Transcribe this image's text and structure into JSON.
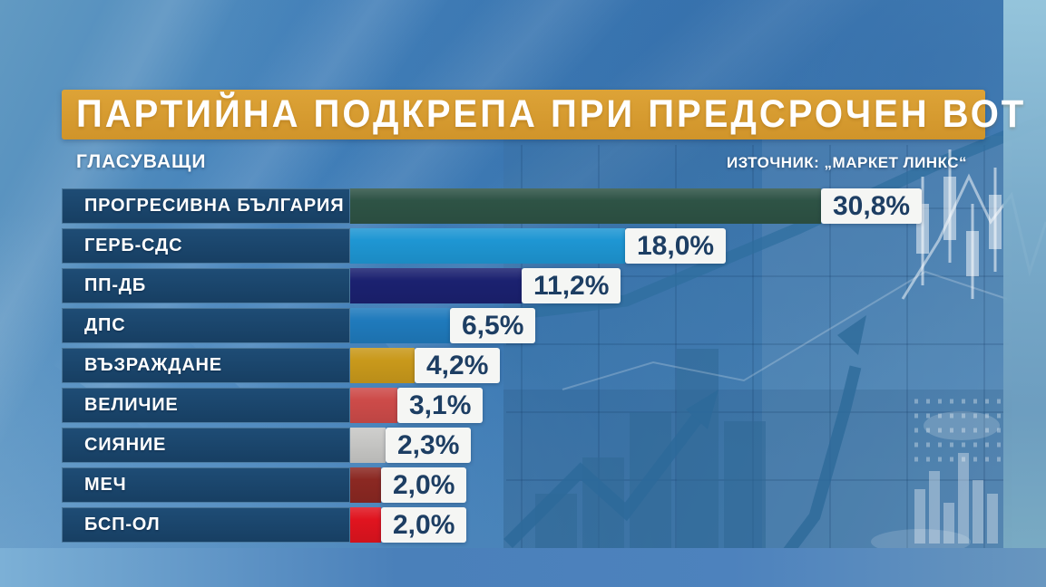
{
  "header": {
    "banner_color": "#d6992c"
  },
  "chart_data": {
    "type": "bar",
    "orientation": "horizontal",
    "title": "ПАРТИЙНА ПОДКРЕПА ПРИ ПРЕДСРОЧЕН ВОТ",
    "group_label": "ГЛАСУВАЩИ",
    "source": "ИЗТОЧНИК: „МАРКЕТ ЛИНКС“",
    "unit": "%",
    "xlim": [
      0,
      31
    ],
    "categories": [
      "ПРОГРЕСИВНА БЪЛГАРИЯ",
      "ГЕРБ-СДС",
      "ПП-ДБ",
      "ДПС",
      "ВЪЗРАЖДАНЕ",
      "ВЕЛИЧИЕ",
      "СИЯНИЕ",
      "МЕЧ",
      "БСП-ОЛ"
    ],
    "values": [
      30.8,
      18.0,
      11.2,
      6.5,
      4.2,
      3.1,
      2.3,
      2.0,
      2.0
    ],
    "value_labels": [
      "30,8%",
      "18,0%",
      "11,2%",
      "6,5%",
      "4,2%",
      "3,1%",
      "2,3%",
      "2,0%",
      "2,0%"
    ],
    "bar_colors": [
      "#2e5345",
      "#1e96d3",
      "#1b2170",
      "#1f7abc",
      "#c9991b",
      "#cd4b49",
      "#c7c7c5",
      "#8b2822",
      "#e0141f"
    ],
    "label_box_color": "#1b4569",
    "value_text_color": "#1d3e63",
    "legend": null,
    "grid": false
  }
}
